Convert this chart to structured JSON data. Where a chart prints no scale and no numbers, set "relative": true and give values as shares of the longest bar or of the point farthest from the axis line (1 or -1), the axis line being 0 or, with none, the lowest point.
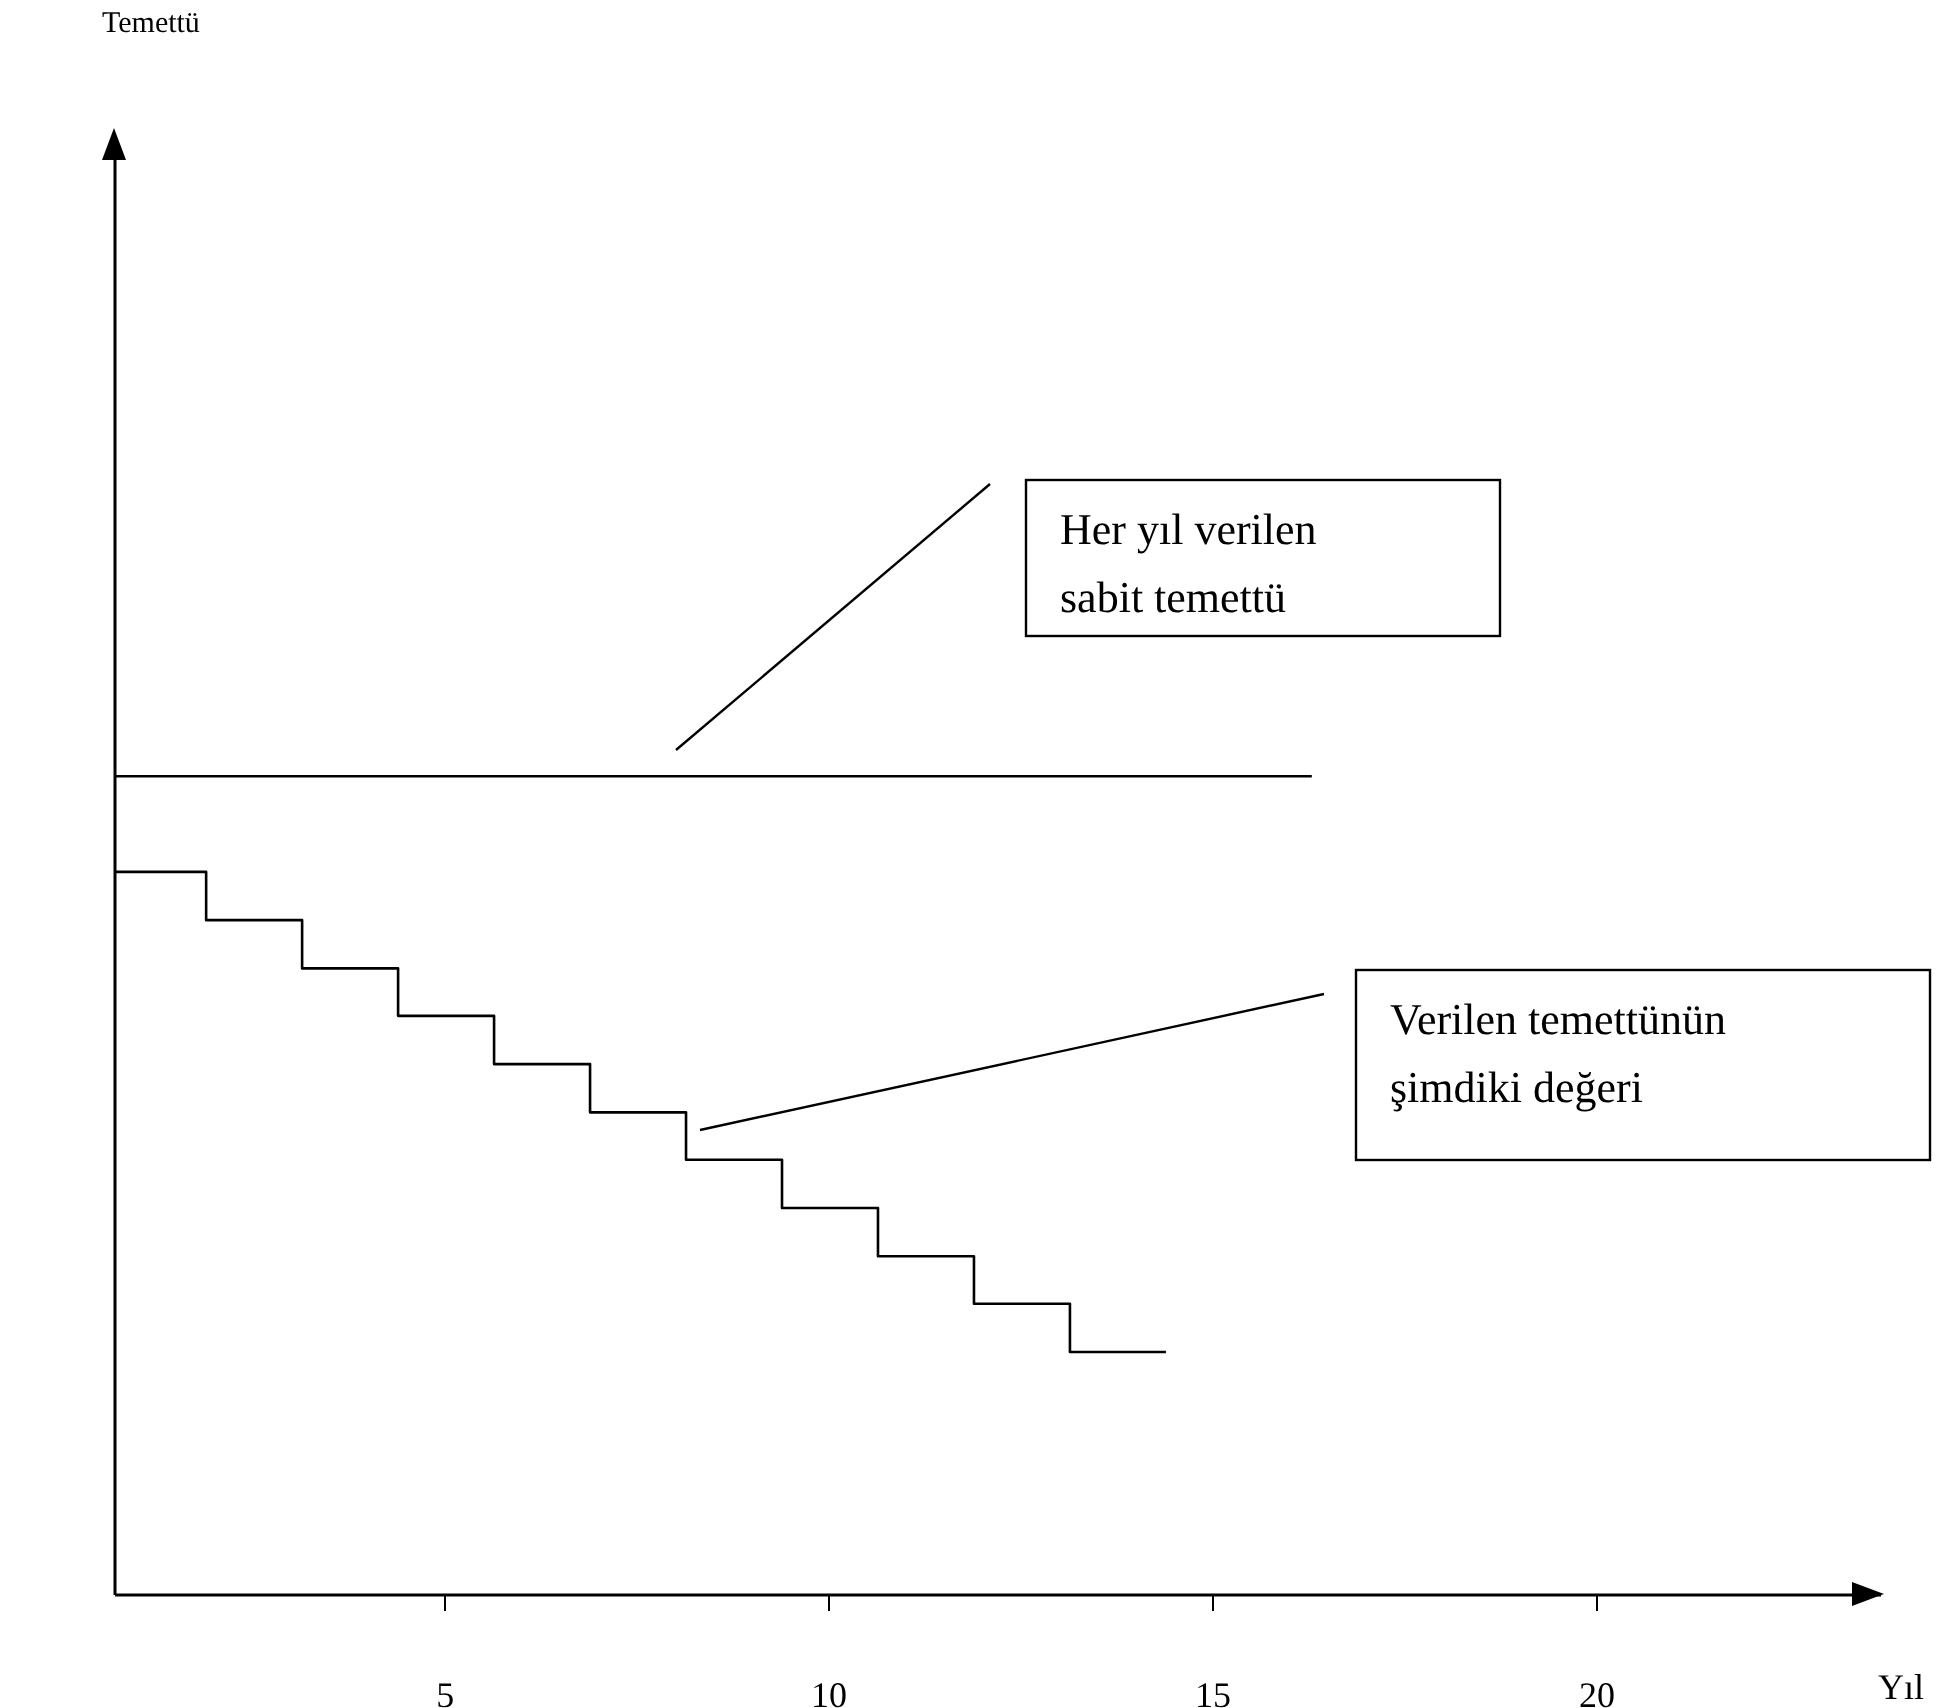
{
  "chart_data": {
    "type": "line",
    "relative": true,
    "xlabel": "Yıl",
    "xlim": [
      0.7,
      23.7
    ],
    "xticks": [
      5,
      10,
      15,
      20
    ],
    "series": [
      {
        "color": "#000000",
        "x": [
          0.7,
          16.3
        ],
        "values": [
          1,
          1
        ]
      },
      {
        "type": "step",
        "color": "#000000",
        "x": [
          0.7,
          1.9,
          3.15,
          4.4,
          5.65,
          6.9,
          8.15,
          9.4,
          10.65,
          11.9,
          13.15,
          14.4
        ],
        "values": [
          0.883,
          0.824,
          0.765,
          0.707,
          0.648,
          0.589,
          0.531,
          0.472,
          0.413,
          0.355,
          0.296,
          0.296
        ]
      }
    ],
    "annotations": [
      "Temettü",
      "Her yıl verilen sabit temettü",
      "Verilen temettünün şimdiki değeri"
    ]
  }
}
